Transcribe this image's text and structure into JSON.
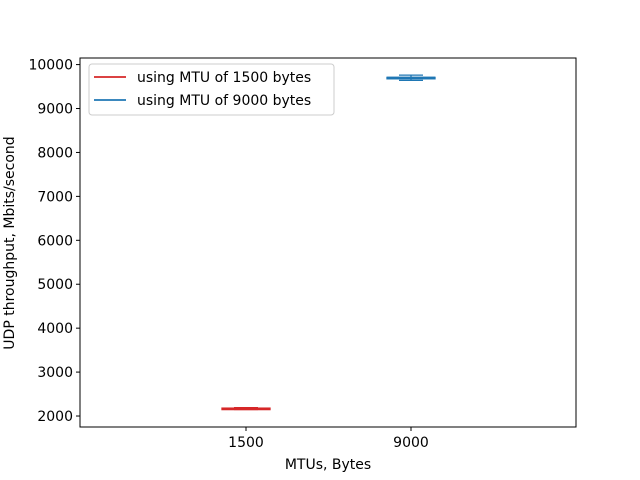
{
  "chart_data": {
    "type": "box",
    "title": "",
    "xlabel": "MTUs, Bytes",
    "ylabel": "UDP throughput, Mbits/second",
    "categories": [
      "1500",
      "9000"
    ],
    "ylim": [
      1750,
      10150
    ],
    "yticks": [
      2000,
      3000,
      4000,
      5000,
      6000,
      7000,
      8000,
      9000,
      10000
    ],
    "grid": false,
    "legend_position": "top-left",
    "series": [
      {
        "name": "using MTU of 1500 bytes",
        "category": "1500",
        "color": "#d62728",
        "whisker_low": 2150,
        "q1": 2160,
        "median": 2170,
        "q3": 2180,
        "whisker_high": 2190
      },
      {
        "name": "using MTU of 9000 bytes",
        "category": "9000",
        "color": "#1f77b4",
        "whisker_low": 9640,
        "q1": 9690,
        "median": 9700,
        "q3": 9710,
        "whisker_high": 9760
      }
    ]
  }
}
